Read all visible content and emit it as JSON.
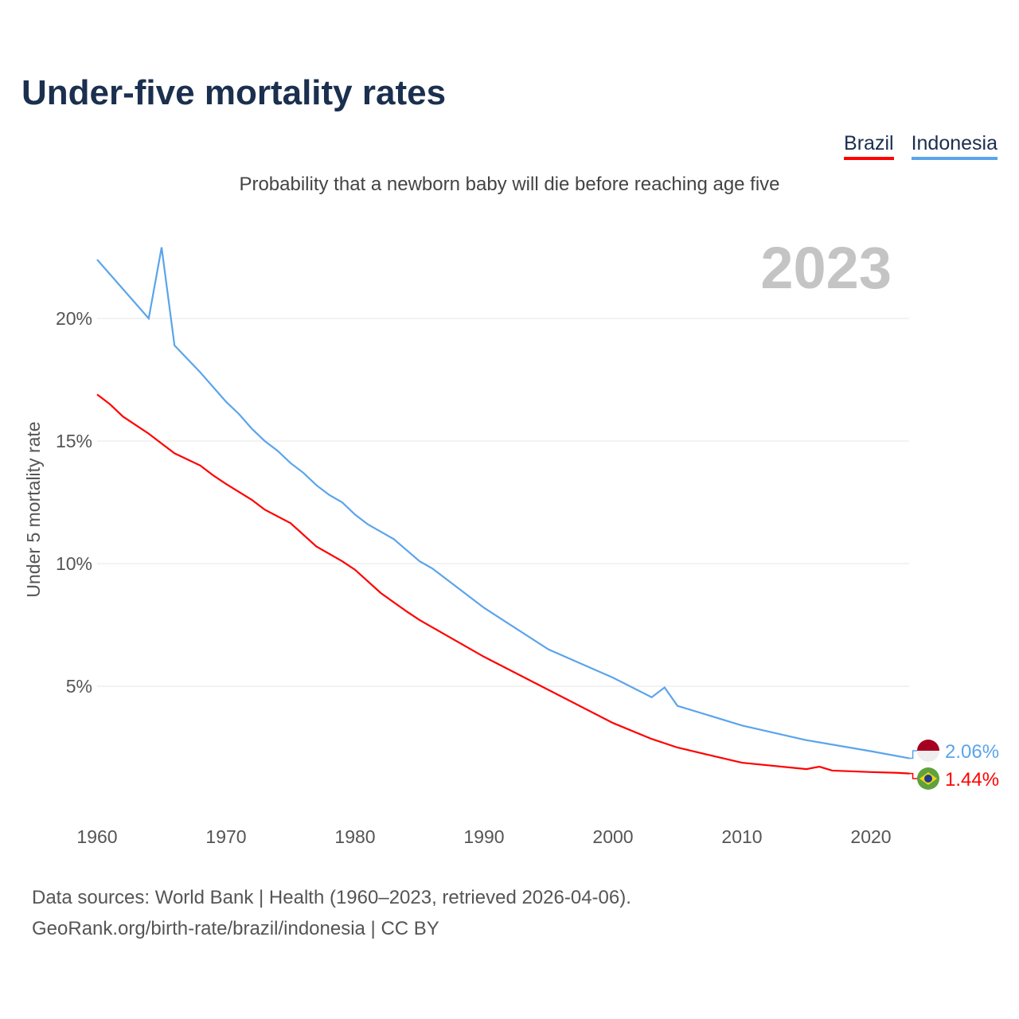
{
  "title": "Under-five mortality rates",
  "subtitle": "Probability that a newborn baby will die before reaching age five",
  "source_line1": "Data sources: World Bank | Health (1960–2023, retrieved 2026-04-06).",
  "source_line2": "GeoRank.org/birth-rate/brazil/indonesia | CC BY",
  "chart_data": {
    "type": "line",
    "title": "Under-five mortality rates",
    "year_label": "2023",
    "ylabel": "Under 5 mortality rate",
    "xlabel": "",
    "xlim": [
      1960,
      2023
    ],
    "ylim": [
      0,
      23
    ],
    "xticks": [
      1960,
      1970,
      1980,
      1990,
      2000,
      2010,
      2020
    ],
    "yticks": [
      {
        "v": 5,
        "label": "5%"
      },
      {
        "v": 10,
        "label": "10%"
      },
      {
        "v": 15,
        "label": "15%"
      },
      {
        "v": 20,
        "label": "20%"
      }
    ],
    "grid": true,
    "legend_position": "top-right",
    "series": [
      {
        "name": "Brazil",
        "color": "#ff0000",
        "end_label": "1.44%",
        "flag": "brazil-flag",
        "points": [
          [
            1960,
            16.9
          ],
          [
            1961,
            16.5
          ],
          [
            1962,
            16.0
          ],
          [
            1964,
            15.3
          ],
          [
            1965,
            14.9
          ],
          [
            1966,
            14.5
          ],
          [
            1968,
            14.0
          ],
          [
            1969,
            13.6
          ],
          [
            1970,
            13.25
          ],
          [
            1972,
            12.6
          ],
          [
            1973,
            12.2
          ],
          [
            1975,
            11.65
          ],
          [
            1977,
            10.7
          ],
          [
            1979,
            10.1
          ],
          [
            1980,
            9.75
          ],
          [
            1982,
            8.8
          ],
          [
            1984,
            8.05
          ],
          [
            1985,
            7.7
          ],
          [
            1990,
            6.2
          ],
          [
            1995,
            4.85
          ],
          [
            2000,
            3.5
          ],
          [
            2003,
            2.85
          ],
          [
            2005,
            2.5
          ],
          [
            2010,
            1.88
          ],
          [
            2015,
            1.62
          ],
          [
            2016,
            1.72
          ],
          [
            2017,
            1.56
          ],
          [
            2020,
            1.5
          ],
          [
            2022,
            1.47
          ],
          [
            2023,
            1.44
          ]
        ]
      },
      {
        "name": "Indonesia",
        "color": "#5ba4ec",
        "end_label": "2.06%",
        "flag": "indonesia-flag",
        "points": [
          [
            1960,
            22.4
          ],
          [
            1964,
            20.0
          ],
          [
            1965,
            22.9
          ],
          [
            1966,
            18.9
          ],
          [
            1968,
            17.8
          ],
          [
            1969,
            17.2
          ],
          [
            1970,
            16.6
          ],
          [
            1971,
            16.1
          ],
          [
            1972,
            15.5
          ],
          [
            1973,
            15.0
          ],
          [
            1974,
            14.6
          ],
          [
            1975,
            14.1
          ],
          [
            1976,
            13.7
          ],
          [
            1977,
            13.2
          ],
          [
            1978,
            12.8
          ],
          [
            1979,
            12.5
          ],
          [
            1980,
            12.0
          ],
          [
            1981,
            11.6
          ],
          [
            1982,
            11.3
          ],
          [
            1983,
            11.0
          ],
          [
            1984,
            10.55
          ],
          [
            1985,
            10.1
          ],
          [
            1986,
            9.8
          ],
          [
            1987,
            9.4
          ],
          [
            1990,
            8.2
          ],
          [
            1995,
            6.5
          ],
          [
            2000,
            5.35
          ],
          [
            2003,
            4.55
          ],
          [
            2004,
            4.95
          ],
          [
            2005,
            4.2
          ],
          [
            2010,
            3.4
          ],
          [
            2015,
            2.8
          ],
          [
            2020,
            2.35
          ],
          [
            2023,
            2.06
          ]
        ]
      }
    ]
  }
}
